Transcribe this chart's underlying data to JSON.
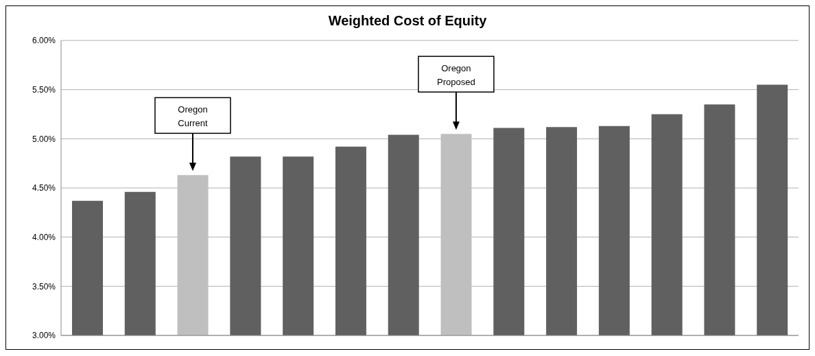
{
  "chart_data": {
    "type": "bar",
    "title": "Weighted Cost of Equity",
    "categories": [
      null,
      null,
      null,
      null,
      null,
      null,
      null,
      null,
      null,
      null,
      null,
      null,
      null,
      null
    ],
    "values": [
      4.37,
      4.46,
      4.63,
      4.82,
      4.82,
      4.92,
      5.04,
      5.05,
      5.11,
      5.12,
      5.13,
      5.25,
      5.35,
      5.55
    ],
    "colors": [
      "#606060",
      "#606060",
      "#bfbfbf",
      "#606060",
      "#606060",
      "#606060",
      "#606060",
      "#bfbfbf",
      "#606060",
      "#606060",
      "#606060",
      "#606060",
      "#606060",
      "#606060"
    ],
    "ylim": [
      3,
      6
    ],
    "yticks": [
      {
        "value": 3,
        "label": "3.00%"
      },
      {
        "value": 3.5,
        "label": "3.50%"
      },
      {
        "value": 4,
        "label": "4.00%"
      },
      {
        "value": 4.5,
        "label": "4.50%"
      },
      {
        "value": 5,
        "label": "5.00%"
      },
      {
        "value": 5.5,
        "label": "5.50%"
      },
      {
        "value": 6,
        "label": "6.00%"
      }
    ],
    "grid": "y",
    "tick_labels": "y",
    "annotations": [
      "Oregon Current",
      "Oregon Proposed"
    ]
  }
}
